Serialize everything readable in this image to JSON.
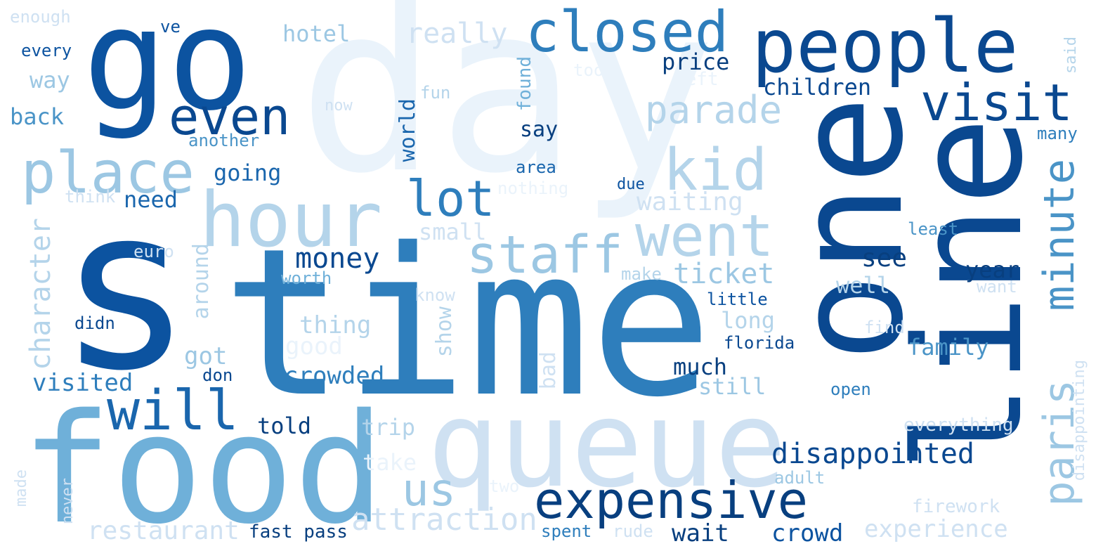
{
  "colors": {
    "c1": "#eaf3fb",
    "c2": "#cfe1f2",
    "c3": "#b4d4ea",
    "c4": "#9cc7e3",
    "c5": "#6fb0d9",
    "c6": "#4a94c7",
    "c7": "#2e7ebc",
    "c8": "#1a66ad",
    "c9": "#0c53a0",
    "c10": "#0a4890",
    "c11": "#083f7f"
  },
  "words": [
    {
      "text": "day",
      "tone": "c1",
      "vertical": false
    },
    {
      "text": "go",
      "tone": "c9",
      "vertical": false
    },
    {
      "text": "s",
      "tone": "c9",
      "vertical": false
    },
    {
      "text": "time",
      "tone": "c7",
      "vertical": false
    },
    {
      "text": "food",
      "tone": "c5",
      "vertical": false
    },
    {
      "text": "queue",
      "tone": "c2",
      "vertical": false
    },
    {
      "text": "one",
      "tone": "c10",
      "vertical": true
    },
    {
      "text": "line",
      "tone": "c10",
      "vertical": true
    },
    {
      "text": "people",
      "tone": "c10",
      "vertical": false
    },
    {
      "text": "closed",
      "tone": "c7",
      "vertical": false
    },
    {
      "text": "hour",
      "tone": "c3",
      "vertical": false
    },
    {
      "text": "even",
      "tone": "c10",
      "vertical": false
    },
    {
      "text": "place",
      "tone": "c4",
      "vertical": false
    },
    {
      "text": "visit",
      "tone": "c10",
      "vertical": false
    },
    {
      "text": "kid",
      "tone": "c3",
      "vertical": false
    },
    {
      "text": "went",
      "tone": "c3",
      "vertical": false
    },
    {
      "text": "staff",
      "tone": "c4",
      "vertical": false
    },
    {
      "text": "lot",
      "tone": "c7",
      "vertical": false
    },
    {
      "text": "will",
      "tone": "c8",
      "vertical": false
    },
    {
      "text": "expensive",
      "tone": "c11",
      "vertical": false
    },
    {
      "text": "us",
      "tone": "c4",
      "vertical": false
    },
    {
      "text": "parade",
      "tone": "c3",
      "vertical": false
    },
    {
      "text": "paris",
      "tone": "c4",
      "vertical": true
    },
    {
      "text": "minute",
      "tone": "c6",
      "vertical": true
    },
    {
      "text": "attraction",
      "tone": "c2",
      "vertical": false
    },
    {
      "text": "restaurant",
      "tone": "c2",
      "vertical": false
    },
    {
      "text": "disappointed",
      "tone": "c10",
      "vertical": false
    },
    {
      "text": "experience",
      "tone": "c2",
      "vertical": false
    },
    {
      "text": "character",
      "tone": "c3",
      "vertical": true
    },
    {
      "text": "money",
      "tone": "c10",
      "vertical": false
    },
    {
      "text": "ticket",
      "tone": "c4",
      "vertical": false
    },
    {
      "text": "really",
      "tone": "c2",
      "vertical": false
    },
    {
      "text": "hotel",
      "tone": "c4",
      "vertical": false
    },
    {
      "text": "price",
      "tone": "c11",
      "vertical": false
    },
    {
      "text": "children",
      "tone": "c10",
      "vertical": false
    },
    {
      "text": "back",
      "tone": "c6",
      "vertical": false
    },
    {
      "text": "way",
      "tone": "c4",
      "vertical": false
    },
    {
      "text": "every",
      "tone": "c9",
      "vertical": false
    },
    {
      "text": "enough",
      "tone": "c2",
      "vertical": false
    },
    {
      "text": "ve",
      "tone": "c9",
      "vertical": false
    },
    {
      "text": "another",
      "tone": "c6",
      "vertical": false
    },
    {
      "text": "now",
      "tone": "c2",
      "vertical": false
    },
    {
      "text": "fun",
      "tone": "c3",
      "vertical": false
    },
    {
      "text": "found",
      "tone": "c5",
      "vertical": true
    },
    {
      "text": "took",
      "tone": "c1",
      "vertical": false
    },
    {
      "text": "left",
      "tone": "c1",
      "vertical": false
    },
    {
      "text": "world",
      "tone": "c8",
      "vertical": true
    },
    {
      "text": "say",
      "tone": "c11",
      "vertical": false
    },
    {
      "text": "area",
      "tone": "c8",
      "vertical": false
    },
    {
      "text": "going",
      "tone": "c8",
      "vertical": false
    },
    {
      "text": "need",
      "tone": "c8",
      "vertical": false
    },
    {
      "text": "think",
      "tone": "c2",
      "vertical": false
    },
    {
      "text": "nothing",
      "tone": "c1",
      "vertical": false
    },
    {
      "text": "due",
      "tone": "c9",
      "vertical": false
    },
    {
      "text": "waiting",
      "tone": "c2",
      "vertical": false
    },
    {
      "text": "small",
      "tone": "c2",
      "vertical": false
    },
    {
      "text": "euro",
      "tone": "c2",
      "vertical": false
    },
    {
      "text": "around",
      "tone": "c3",
      "vertical": true
    },
    {
      "text": "worth",
      "tone": "c5",
      "vertical": false
    },
    {
      "text": "make",
      "tone": "c3",
      "vertical": false
    },
    {
      "text": "know",
      "tone": "c2",
      "vertical": false
    },
    {
      "text": "see",
      "tone": "c11",
      "vertical": false
    },
    {
      "text": "well",
      "tone": "c3",
      "vertical": false
    },
    {
      "text": "year",
      "tone": "c11",
      "vertical": false
    },
    {
      "text": "want",
      "tone": "c2",
      "vertical": false
    },
    {
      "text": "little",
      "tone": "c9",
      "vertical": false
    },
    {
      "text": "least",
      "tone": "c6",
      "vertical": false
    },
    {
      "text": "many",
      "tone": "c7",
      "vertical": false
    },
    {
      "text": "said",
      "tone": "c3",
      "vertical": true
    },
    {
      "text": "didn",
      "tone": "c10",
      "vertical": false
    },
    {
      "text": "thing",
      "tone": "c3",
      "vertical": false
    },
    {
      "text": "show",
      "tone": "c3",
      "vertical": true
    },
    {
      "text": "good",
      "tone": "c1",
      "vertical": false
    },
    {
      "text": "long",
      "tone": "c3",
      "vertical": false
    },
    {
      "text": "find",
      "tone": "c2",
      "vertical": false
    },
    {
      "text": "florida",
      "tone": "c10",
      "vertical": false
    },
    {
      "text": "family",
      "tone": "c6",
      "vertical": false
    },
    {
      "text": "got",
      "tone": "c4",
      "vertical": false
    },
    {
      "text": "don",
      "tone": "c10",
      "vertical": false
    },
    {
      "text": "crowded",
      "tone": "c7",
      "vertical": false
    },
    {
      "text": "visited",
      "tone": "c7",
      "vertical": false
    },
    {
      "text": "much",
      "tone": "c11",
      "vertical": false
    },
    {
      "text": "still",
      "tone": "c4",
      "vertical": false
    },
    {
      "text": "bad",
      "tone": "c2",
      "vertical": true
    },
    {
      "text": "open",
      "tone": "c7",
      "vertical": false
    },
    {
      "text": "disappointing",
      "tone": "c2",
      "vertical": true
    },
    {
      "text": "told",
      "tone": "c11",
      "vertical": false
    },
    {
      "text": "trip",
      "tone": "c3",
      "vertical": false
    },
    {
      "text": "take",
      "tone": "c1",
      "vertical": false
    },
    {
      "text": "everything",
      "tone": "c2",
      "vertical": false
    },
    {
      "text": "made",
      "tone": "c2",
      "vertical": true
    },
    {
      "text": "never",
      "tone": "c2",
      "vertical": true
    },
    {
      "text": "two",
      "tone": "c1",
      "vertical": false
    },
    {
      "text": "adult",
      "tone": "c4",
      "vertical": false
    },
    {
      "text": "firework",
      "tone": "c2",
      "vertical": false
    },
    {
      "text": "fast pass",
      "tone": "c11",
      "vertical": false
    },
    {
      "text": "spent",
      "tone": "c7",
      "vertical": false
    },
    {
      "text": "rude",
      "tone": "c2",
      "vertical": false
    },
    {
      "text": "wait",
      "tone": "c11",
      "vertical": false
    },
    {
      "text": "crowd",
      "tone": "c9",
      "vertical": false
    }
  ]
}
